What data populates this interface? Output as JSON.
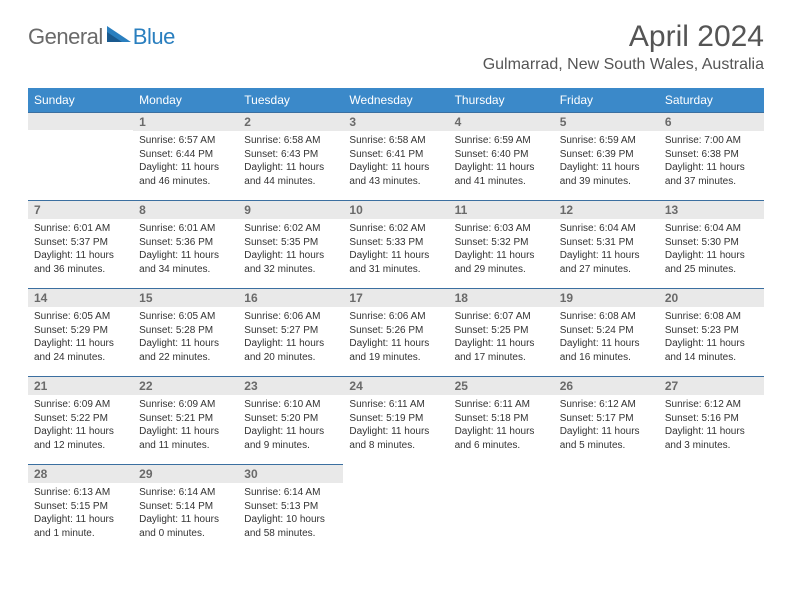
{
  "logo": {
    "general": "General",
    "blue": "Blue"
  },
  "title": "April 2024",
  "location": "Gulmarrad, New South Wales, Australia",
  "colors": {
    "header_bg": "#3b89c9",
    "header_text": "#ffffff",
    "daynum_bg": "#e9e9e9",
    "daynum_text": "#6a6a6a",
    "border": "#3b6fa0",
    "body_text": "#333333",
    "logo_gray": "#6a6a6a",
    "logo_blue": "#2a7fbf"
  },
  "weekdays": [
    "Sunday",
    "Monday",
    "Tuesday",
    "Wednesday",
    "Thursday",
    "Friday",
    "Saturday"
  ],
  "weeks": [
    [
      null,
      {
        "n": "1",
        "sr": "6:57 AM",
        "ss": "6:44 PM",
        "dl": "11 hours and 46 minutes."
      },
      {
        "n": "2",
        "sr": "6:58 AM",
        "ss": "6:43 PM",
        "dl": "11 hours and 44 minutes."
      },
      {
        "n": "3",
        "sr": "6:58 AM",
        "ss": "6:41 PM",
        "dl": "11 hours and 43 minutes."
      },
      {
        "n": "4",
        "sr": "6:59 AM",
        "ss": "6:40 PM",
        "dl": "11 hours and 41 minutes."
      },
      {
        "n": "5",
        "sr": "6:59 AM",
        "ss": "6:39 PM",
        "dl": "11 hours and 39 minutes."
      },
      {
        "n": "6",
        "sr": "7:00 AM",
        "ss": "6:38 PM",
        "dl": "11 hours and 37 minutes."
      }
    ],
    [
      {
        "n": "7",
        "sr": "6:01 AM",
        "ss": "5:37 PM",
        "dl": "11 hours and 36 minutes."
      },
      {
        "n": "8",
        "sr": "6:01 AM",
        "ss": "5:36 PM",
        "dl": "11 hours and 34 minutes."
      },
      {
        "n": "9",
        "sr": "6:02 AM",
        "ss": "5:35 PM",
        "dl": "11 hours and 32 minutes."
      },
      {
        "n": "10",
        "sr": "6:02 AM",
        "ss": "5:33 PM",
        "dl": "11 hours and 31 minutes."
      },
      {
        "n": "11",
        "sr": "6:03 AM",
        "ss": "5:32 PM",
        "dl": "11 hours and 29 minutes."
      },
      {
        "n": "12",
        "sr": "6:04 AM",
        "ss": "5:31 PM",
        "dl": "11 hours and 27 minutes."
      },
      {
        "n": "13",
        "sr": "6:04 AM",
        "ss": "5:30 PM",
        "dl": "11 hours and 25 minutes."
      }
    ],
    [
      {
        "n": "14",
        "sr": "6:05 AM",
        "ss": "5:29 PM",
        "dl": "11 hours and 24 minutes."
      },
      {
        "n": "15",
        "sr": "6:05 AM",
        "ss": "5:28 PM",
        "dl": "11 hours and 22 minutes."
      },
      {
        "n": "16",
        "sr": "6:06 AM",
        "ss": "5:27 PM",
        "dl": "11 hours and 20 minutes."
      },
      {
        "n": "17",
        "sr": "6:06 AM",
        "ss": "5:26 PM",
        "dl": "11 hours and 19 minutes."
      },
      {
        "n": "18",
        "sr": "6:07 AM",
        "ss": "5:25 PM",
        "dl": "11 hours and 17 minutes."
      },
      {
        "n": "19",
        "sr": "6:08 AM",
        "ss": "5:24 PM",
        "dl": "11 hours and 16 minutes."
      },
      {
        "n": "20",
        "sr": "6:08 AM",
        "ss": "5:23 PM",
        "dl": "11 hours and 14 minutes."
      }
    ],
    [
      {
        "n": "21",
        "sr": "6:09 AM",
        "ss": "5:22 PM",
        "dl": "11 hours and 12 minutes."
      },
      {
        "n": "22",
        "sr": "6:09 AM",
        "ss": "5:21 PM",
        "dl": "11 hours and 11 minutes."
      },
      {
        "n": "23",
        "sr": "6:10 AM",
        "ss": "5:20 PM",
        "dl": "11 hours and 9 minutes."
      },
      {
        "n": "24",
        "sr": "6:11 AM",
        "ss": "5:19 PM",
        "dl": "11 hours and 8 minutes."
      },
      {
        "n": "25",
        "sr": "6:11 AM",
        "ss": "5:18 PM",
        "dl": "11 hours and 6 minutes."
      },
      {
        "n": "26",
        "sr": "6:12 AM",
        "ss": "5:17 PM",
        "dl": "11 hours and 5 minutes."
      },
      {
        "n": "27",
        "sr": "6:12 AM",
        "ss": "5:16 PM",
        "dl": "11 hours and 3 minutes."
      }
    ],
    [
      {
        "n": "28",
        "sr": "6:13 AM",
        "ss": "5:15 PM",
        "dl": "11 hours and 1 minute."
      },
      {
        "n": "29",
        "sr": "6:14 AM",
        "ss": "5:14 PM",
        "dl": "11 hours and 0 minutes."
      },
      {
        "n": "30",
        "sr": "6:14 AM",
        "ss": "5:13 PM",
        "dl": "10 hours and 58 minutes."
      },
      null,
      null,
      null,
      null
    ]
  ],
  "labels": {
    "sunrise": "Sunrise:",
    "sunset": "Sunset:",
    "daylight": "Daylight:"
  }
}
